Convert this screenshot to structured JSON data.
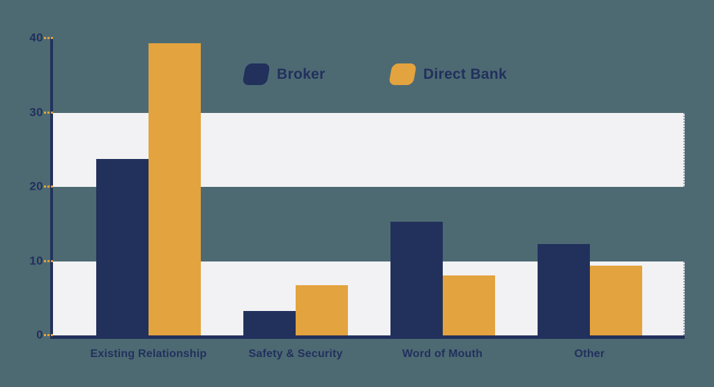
{
  "colors": {
    "background": "#4d6a73",
    "navy": "#22305c",
    "orange": "#e3a33e",
    "band": "#f2f2f4",
    "axis": "#22305c",
    "tick_dash": "#e3a33e",
    "text": "#22305c"
  },
  "legend": {
    "items": [
      {
        "label": "Broker",
        "color": "#22305c"
      },
      {
        "label": "Direct Bank",
        "color": "#e3a33e"
      }
    ]
  },
  "chart_data": {
    "type": "bar",
    "title": "",
    "xlabel": "",
    "ylabel": "",
    "categories": [
      "Existing Relationship",
      "Safety & Security",
      "Word of Mouth",
      "Other"
    ],
    "series": [
      {
        "name": "Broker",
        "color": "#22305c",
        "values": [
          23.8,
          3.3,
          15.3,
          12.3
        ]
      },
      {
        "name": "Direct Bank",
        "color": "#e3a33e",
        "values": [
          39.3,
          6.8,
          8.1,
          9.4
        ]
      }
    ],
    "ylim": [
      0,
      40
    ],
    "yticks": [
      0,
      10,
      20,
      30,
      40
    ],
    "grid": "alternating horizontal bands",
    "band_ranges": [
      [
        0,
        10
      ],
      [
        20,
        30
      ]
    ],
    "legend_position": "top-center"
  }
}
